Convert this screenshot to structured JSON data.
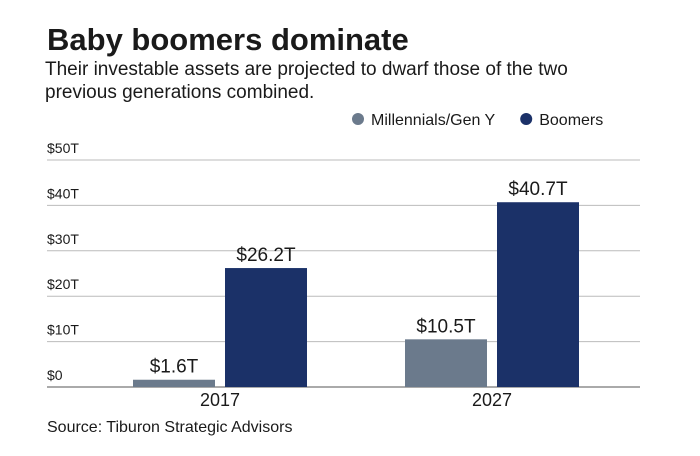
{
  "chart_data": {
    "type": "bar",
    "title": "Baby boomers dominate",
    "subtitle": "Their investable assets are projected to dwarf those of the two previous generations combined.",
    "source": "Source: Tiburon Strategic Advisors",
    "categories": [
      "2017",
      "2027"
    ],
    "series": [
      {
        "name": "Millennials/Gen Y",
        "color": "#6b7a8c",
        "values": [
          1.6,
          10.5
        ],
        "value_labels": [
          "$1.6T",
          "$10.5T"
        ]
      },
      {
        "name": "Boomers",
        "color": "#1b3168",
        "values": [
          26.2,
          40.7
        ],
        "value_labels": [
          "$26.2T",
          "$40.7T"
        ]
      }
    ],
    "ylim": [
      0,
      50
    ],
    "yticks": [
      {
        "value": 0,
        "label": "$0"
      },
      {
        "value": 10,
        "label": "$10T"
      },
      {
        "value": 20,
        "label": "$20T"
      },
      {
        "value": 30,
        "label": "$30T"
      },
      {
        "value": 40,
        "label": "$40T"
      },
      {
        "value": 50,
        "label": "$50T"
      }
    ],
    "grid": true,
    "legend": "top-right"
  }
}
